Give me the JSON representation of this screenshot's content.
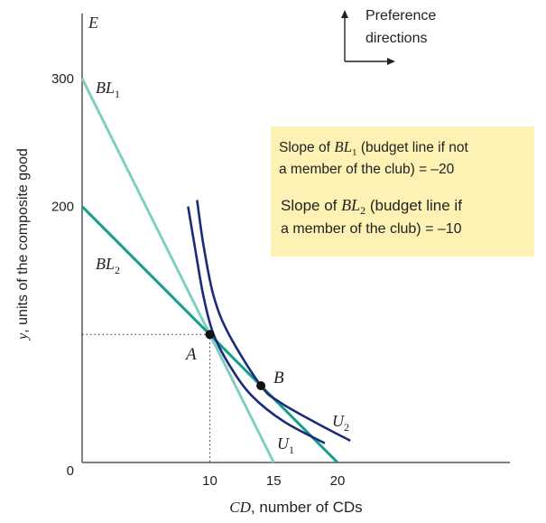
{
  "chart_data": {
    "type": "line",
    "title": "",
    "xlabel": "CD, number of CDs",
    "ylabel": "y, units of the composite good",
    "corner_label": "E",
    "origin_label": "0",
    "xlim": [
      0,
      33
    ],
    "ylim": [
      0,
      350
    ],
    "x_ticks": [
      {
        "value": 10,
        "label": "10"
      },
      {
        "value": 15,
        "label": "15"
      },
      {
        "value": 20,
        "label": "20"
      }
    ],
    "y_ticks": [
      {
        "value": 200,
        "label": "200"
      },
      {
        "value": 300,
        "label": "300"
      }
    ],
    "grid": false,
    "colors": {
      "budget_line_1": "#7ecfc0",
      "budget_line_2": "#11a08a",
      "indifference": "#1c2a7a",
      "axis": "#555555",
      "note_box": "#fdf2b3"
    },
    "series": [
      {
        "key": "bl1",
        "name": "BL1",
        "label_main": "BL",
        "label_sub": "1",
        "points": [
          [
            0,
            300
          ],
          [
            15,
            0
          ]
        ]
      },
      {
        "key": "bl2",
        "name": "BL2",
        "label_main": "BL",
        "label_sub": "2",
        "points": [
          [
            0,
            200
          ],
          [
            20,
            0
          ]
        ]
      },
      {
        "key": "u1",
        "name": "U1",
        "label_main": "U",
        "label_sub": "1",
        "points": [
          [
            8.3,
            200
          ],
          [
            8.8,
            170
          ],
          [
            9.5,
            130
          ],
          [
            10.3,
            100
          ],
          [
            11.6,
            75
          ],
          [
            13.3,
            52
          ],
          [
            15.8,
            32
          ],
          [
            19,
            15
          ]
        ]
      },
      {
        "key": "u2",
        "name": "U2",
        "label_main": "U",
        "label_sub": "2",
        "points": [
          [
            9,
            205
          ],
          [
            9.5,
            170
          ],
          [
            10.3,
            130
          ],
          [
            11.5,
            100
          ],
          [
            14,
            60
          ],
          [
            15.5,
            47
          ],
          [
            18.5,
            30
          ],
          [
            21,
            17
          ]
        ]
      }
    ],
    "points": [
      {
        "name": "A",
        "x": 10,
        "y": 100
      },
      {
        "name": "B",
        "x": 14,
        "y": 60
      }
    ],
    "dotted_guides": {
      "from_point": "A"
    },
    "preference_directions": "Preference directions",
    "note": {
      "line1": {
        "prefix": "Slope of ",
        "line_main": "BL",
        "line_sub": "1",
        "suffix": " (budget line if not"
      },
      "line2": "a member of the club) = –20",
      "line3": {
        "prefix": "Slope of ",
        "line_main": "BL",
        "line_sub": "2",
        "suffix": " (budget line if"
      },
      "line4": "a member of the club) = –10"
    }
  }
}
